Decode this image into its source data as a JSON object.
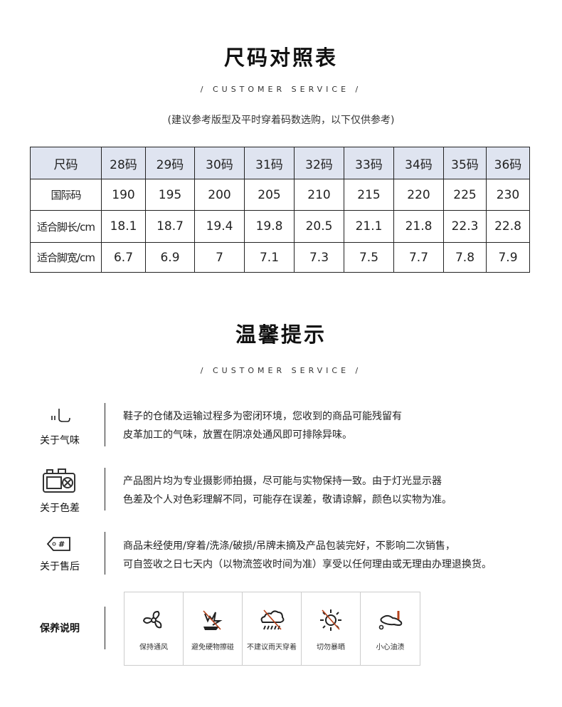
{
  "size_chart": {
    "title": "尺码对照表",
    "subtitle": "/ CUSTOMER SERVICE /",
    "note": "(建议参考版型及平时穿着码数选购，以下仅供参考)",
    "header": [
      "尺码",
      "28码",
      "29码",
      "30码",
      "31码",
      "32码",
      "33码",
      "34码",
      "35码",
      "36码"
    ],
    "rows": [
      [
        "国际码",
        "190",
        "195",
        "200",
        "205",
        "210",
        "215",
        "220",
        "225",
        "230"
      ],
      [
        "适合脚长/cm",
        "18.1",
        "18.7",
        "19.4",
        "19.8",
        "20.5",
        "21.1",
        "21.8",
        "22.3",
        "22.8"
      ],
      [
        "适合脚宽/cm",
        "6.7",
        "6.9",
        "7",
        "7.1",
        "7.3",
        "7.5",
        "7.7",
        "7.8",
        "7.9"
      ]
    ],
    "header_color": "#dfe4f0"
  },
  "tips": {
    "title": "温馨提示",
    "subtitle": "/ CUSTOMER SERVICE /",
    "items": [
      {
        "label": "关于气味",
        "icon": "smell-icon",
        "lines": [
          "鞋子的仓储及运输过程多为密闭环境，您收到的商品可能残留有",
          "皮革加工的气味，放置在阴凉处通风即可排除异味。"
        ]
      },
      {
        "label": "关于色差",
        "icon": "camera-icon",
        "lines": [
          "产品图片均为专业摄影师拍摄，尽可能与实物保持一致。由于灯光显示器",
          "色差及个人对色彩理解不同，可能存在误差，敬请谅解，颜色以实物为准。"
        ]
      },
      {
        "label": "关于售后",
        "icon": "tag-icon",
        "lines": [
          "商品未经使用/穿着/洗涤/破损/吊牌未摘及产品包装完好，不影响二次销售，",
          "可自签收之日七天内（以物流签收时间为准）享受以任何理由或无理由办理退换货。"
        ]
      }
    ],
    "care": {
      "label": "保养说明",
      "items": [
        {
          "icon": "fan-icon",
          "label": "保持通风"
        },
        {
          "icon": "no-hard-objects-icon",
          "label": "避免硬物擦碰"
        },
        {
          "icon": "no-rain-icon",
          "label": "不建议雨天穿着"
        },
        {
          "icon": "no-sun-icon",
          "label": "切勿暴晒"
        },
        {
          "icon": "oil-stain-icon",
          "label": "小心油渍"
        }
      ],
      "accent": "#b5411a"
    }
  }
}
